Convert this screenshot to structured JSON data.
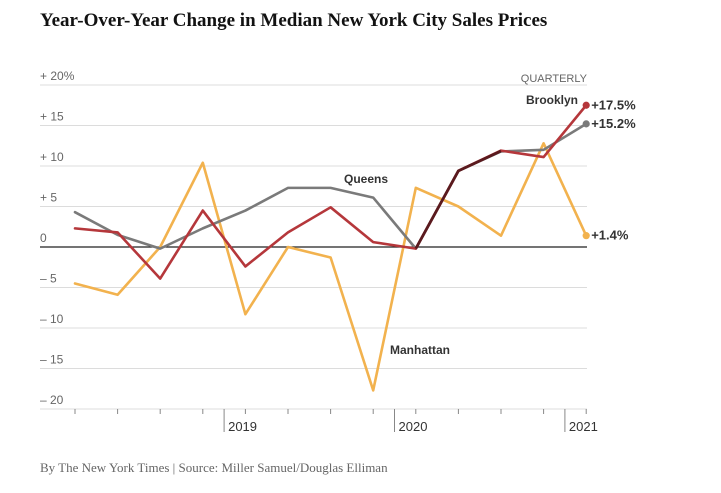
{
  "title": "Year-Over-Year Change in Median New York City Sales Prices",
  "footer": "By The New York Times | Source: Miller Samuel/Douglas Elliman",
  "colors": {
    "brooklyn": "#b5373b",
    "queens": "#7a7a7a",
    "manhattan": "#f2b24e",
    "overlap": "#5a1a1e",
    "grid": "#dcdcdc",
    "zero": "#222222"
  },
  "chart_data": {
    "type": "line",
    "title": "Year-Over-Year Change in Median New York City Sales Prices",
    "period_label": "QUARTERLY",
    "ylim": [
      -20,
      20
    ],
    "y_ticks": [
      {
        "value": 20,
        "label": "+ 20%"
      },
      {
        "value": 15,
        "label": "+ 15"
      },
      {
        "value": 10,
        "label": "+ 10"
      },
      {
        "value": 5,
        "label": "+  5"
      },
      {
        "value": 0,
        "label": "0"
      },
      {
        "value": -5,
        "label": "–  5"
      },
      {
        "value": -10,
        "label": "– 10"
      },
      {
        "value": -15,
        "label": "– 15"
      },
      {
        "value": -20,
        "label": "– 20"
      }
    ],
    "x_ticks": [
      {
        "quarter": 3.5,
        "label": "2019"
      },
      {
        "quarter": 7.5,
        "label": "2020"
      },
      {
        "quarter": 11.5,
        "label": "2021"
      }
    ],
    "quarters": 13,
    "series": [
      {
        "name": "Queens",
        "key": "queens",
        "values": [
          4.3,
          1.5,
          -0.2,
          2.3,
          4.5,
          7.3,
          7.3,
          6.1,
          -0.2,
          9.4,
          11.8,
          12.0,
          15.2
        ],
        "end_label": "+15.2%"
      },
      {
        "name": "Brooklyn",
        "key": "brooklyn",
        "values": [
          2.3,
          1.8,
          -3.9,
          4.5,
          -2.4,
          1.8,
          4.9,
          0.6,
          -0.2,
          9.4,
          11.9,
          11.1,
          17.5
        ],
        "end_label": "+17.5%"
      },
      {
        "name": "Manhattan",
        "key": "manhattan",
        "values": [
          -4.5,
          -5.9,
          0.0,
          10.4,
          -8.3,
          0.0,
          -1.3,
          -17.7,
          7.3,
          5.0,
          1.4,
          12.8,
          1.4
        ],
        "end_label": "+1.4%"
      }
    ]
  }
}
